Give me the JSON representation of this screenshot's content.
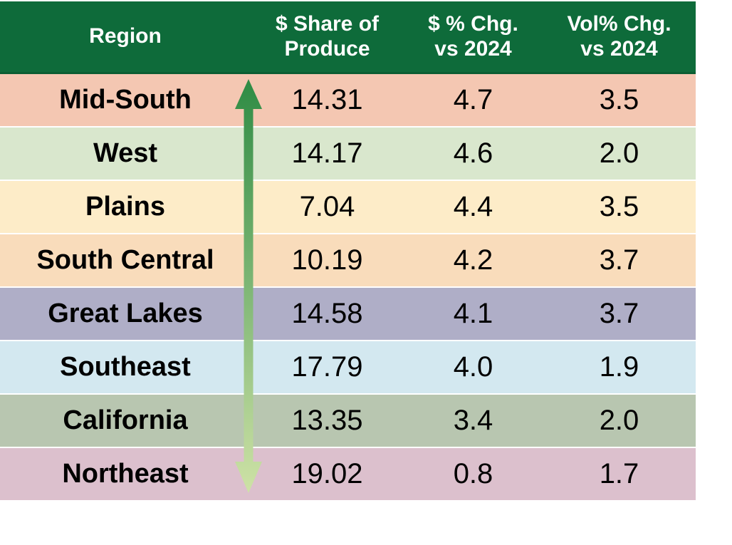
{
  "theme": {
    "header_bg": "#0E6B3A",
    "header_border": "#0B5E33",
    "header_text": "#FFFFFF",
    "body_text": "#000000",
    "background": "#FFFFFF",
    "arrow_gradient_top": "#2E8B44",
    "arrow_gradient_bottom": "#CEE2A6"
  },
  "table": {
    "columns": [
      {
        "label": "Region"
      },
      {
        "label": "$ Share of\nProduce"
      },
      {
        "label": "$ % Chg.\nvs 2024"
      },
      {
        "label": "Vol% Chg.\nvs 2024"
      }
    ],
    "rows": [
      {
        "region": "Mid-South",
        "share_of_produce": "14.31",
        "dollar_pct_chg": "4.7",
        "vol_pct_chg": "3.5",
        "row_color": "#F4C7B2"
      },
      {
        "region": "West",
        "share_of_produce": "14.17",
        "dollar_pct_chg": "4.6",
        "vol_pct_chg": "2.0",
        "row_color": "#D9E7CD"
      },
      {
        "region": "Plains",
        "share_of_produce": "7.04",
        "dollar_pct_chg": "4.4",
        "vol_pct_chg": "3.5",
        "row_color": "#FDECC8"
      },
      {
        "region": "South Central",
        "share_of_produce": "10.19",
        "dollar_pct_chg": "4.2",
        "vol_pct_chg": "3.7",
        "row_color": "#F9DCBB"
      },
      {
        "region": "Great Lakes",
        "share_of_produce": "14.58",
        "dollar_pct_chg": "4.1",
        "vol_pct_chg": "3.7",
        "row_color": "#AFAEC7"
      },
      {
        "region": "Southeast",
        "share_of_produce": "17.79",
        "dollar_pct_chg": "4.0",
        "vol_pct_chg": "1.9",
        "row_color": "#D3E8F0"
      },
      {
        "region": "California",
        "share_of_produce": "13.35",
        "dollar_pct_chg": "3.4",
        "vol_pct_chg": "2.0",
        "row_color": "#B8C6B0"
      },
      {
        "region": "Northeast",
        "share_of_produce": "19.02",
        "dollar_pct_chg": "0.8",
        "vol_pct_chg": "1.7",
        "row_color": "#DCC0CD"
      }
    ]
  },
  "chart_data": {
    "type": "table",
    "title": "",
    "columns": [
      "Region",
      "$ Share of Produce",
      "$ % Chg. vs 2024",
      "Vol% Chg. vs 2024"
    ],
    "rows": [
      [
        "Mid-South",
        14.31,
        4.7,
        3.5
      ],
      [
        "West",
        14.17,
        4.6,
        2.0
      ],
      [
        "Plains",
        7.04,
        4.4,
        3.5
      ],
      [
        "South Central",
        10.19,
        4.2,
        3.7
      ],
      [
        "Great Lakes",
        14.58,
        4.1,
        3.7
      ],
      [
        "Southeast",
        17.79,
        4.0,
        1.9
      ],
      [
        "California",
        13.35,
        3.4,
        2.0
      ],
      [
        "Northeast",
        19.02,
        0.8,
        1.7
      ]
    ],
    "sort": "descending by $ % Chg. vs 2024",
    "layout": {
      "header_position": "top",
      "grid": false
    }
  }
}
